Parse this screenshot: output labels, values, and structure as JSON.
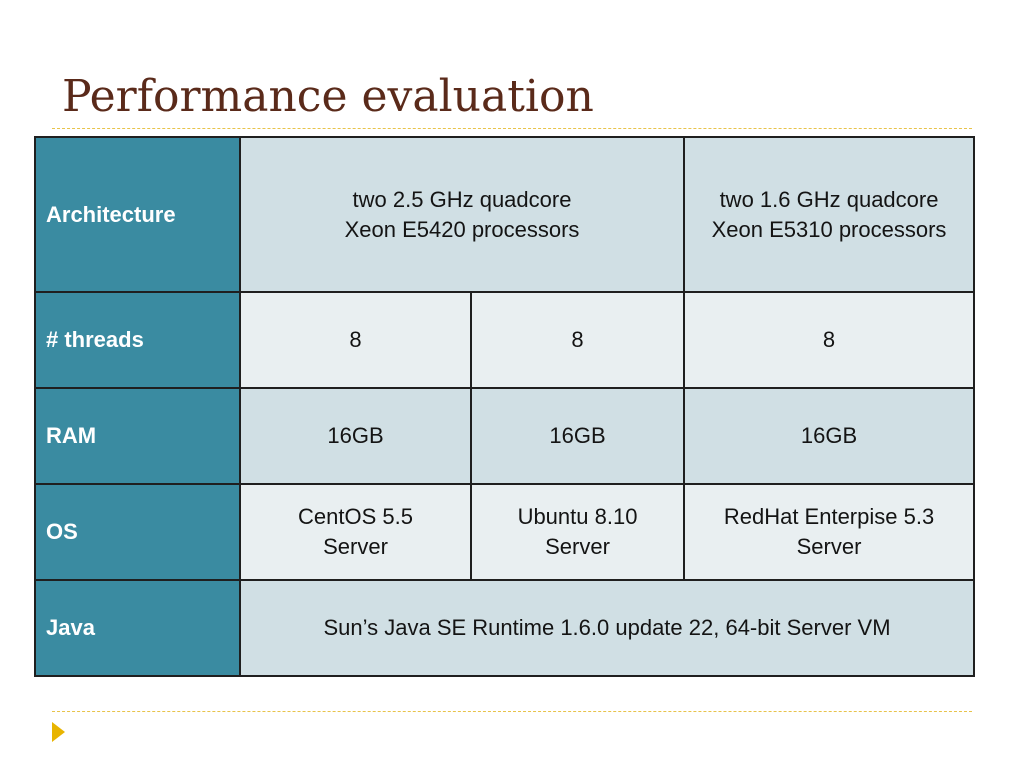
{
  "slide": {
    "title": "Performance evaluation"
  },
  "table": {
    "architecture": {
      "label": "Architecture",
      "config_a_b": [
        "two 2.5 GHz quadcore",
        "Xeon E5420 processors"
      ],
      "config_c": [
        "two 1.6 GHz quadcore",
        "Xeon E5310 processors"
      ]
    },
    "threads": {
      "label": "# threads",
      "values": [
        "8",
        "8",
        "8"
      ]
    },
    "ram": {
      "label": "RAM",
      "values": [
        "16GB",
        "16GB",
        "16GB"
      ]
    },
    "os": {
      "label": "OS",
      "values": [
        [
          "CentOS 5.5",
          "Server"
        ],
        [
          "Ubuntu 8.10",
          "Server"
        ],
        [
          "RedHat Enterpise 5.3",
          "Server"
        ]
      ]
    },
    "java": {
      "label": "Java",
      "value": "Sun’s Java SE Runtime 1.6.0 update 22, 64-bit Server VM"
    }
  },
  "colors": {
    "title": "#5a2a1a",
    "header_column": "#3a8ba1",
    "band_dark": "#d0dfe4",
    "band_light": "#e9eff1",
    "accent_rule": "#e8c34a",
    "bullet": "#e8b400"
  },
  "icons": {
    "footer_bullet": "triangle-bullet-icon"
  }
}
